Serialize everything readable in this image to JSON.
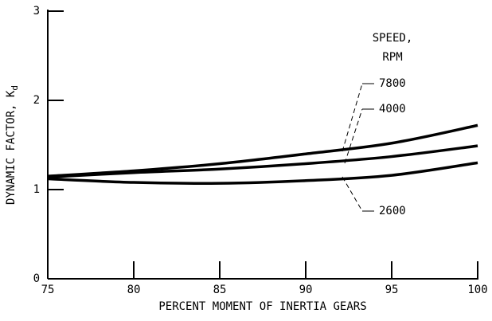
{
  "chart_data": {
    "type": "line",
    "x_label": "PERCENT MOMENT OF INERTIA GEARS",
    "y_label": "DYNAMIC FACTOR, K",
    "y_label_subscript": "d",
    "legend_title": [
      "SPEED,",
      "RPM"
    ],
    "x": [
      75,
      80,
      85,
      90,
      95,
      100
    ],
    "series": [
      {
        "name": "7800",
        "color": "#000000",
        "values": [
          1.15,
          1.21,
          1.29,
          1.4,
          1.52,
          1.72
        ]
      },
      {
        "name": "4000",
        "color": "#000000",
        "values": [
          1.14,
          1.19,
          1.23,
          1.29,
          1.37,
          1.49
        ]
      },
      {
        "name": "2600",
        "color": "#000000",
        "values": [
          1.12,
          1.08,
          1.07,
          1.1,
          1.16,
          1.3
        ]
      }
    ],
    "xlim": [
      75,
      100
    ],
    "xticks": [
      75,
      80,
      85,
      90,
      95,
      100
    ],
    "ylim": [
      0,
      3
    ],
    "yticks": [
      0,
      1,
      2,
      3
    ]
  }
}
